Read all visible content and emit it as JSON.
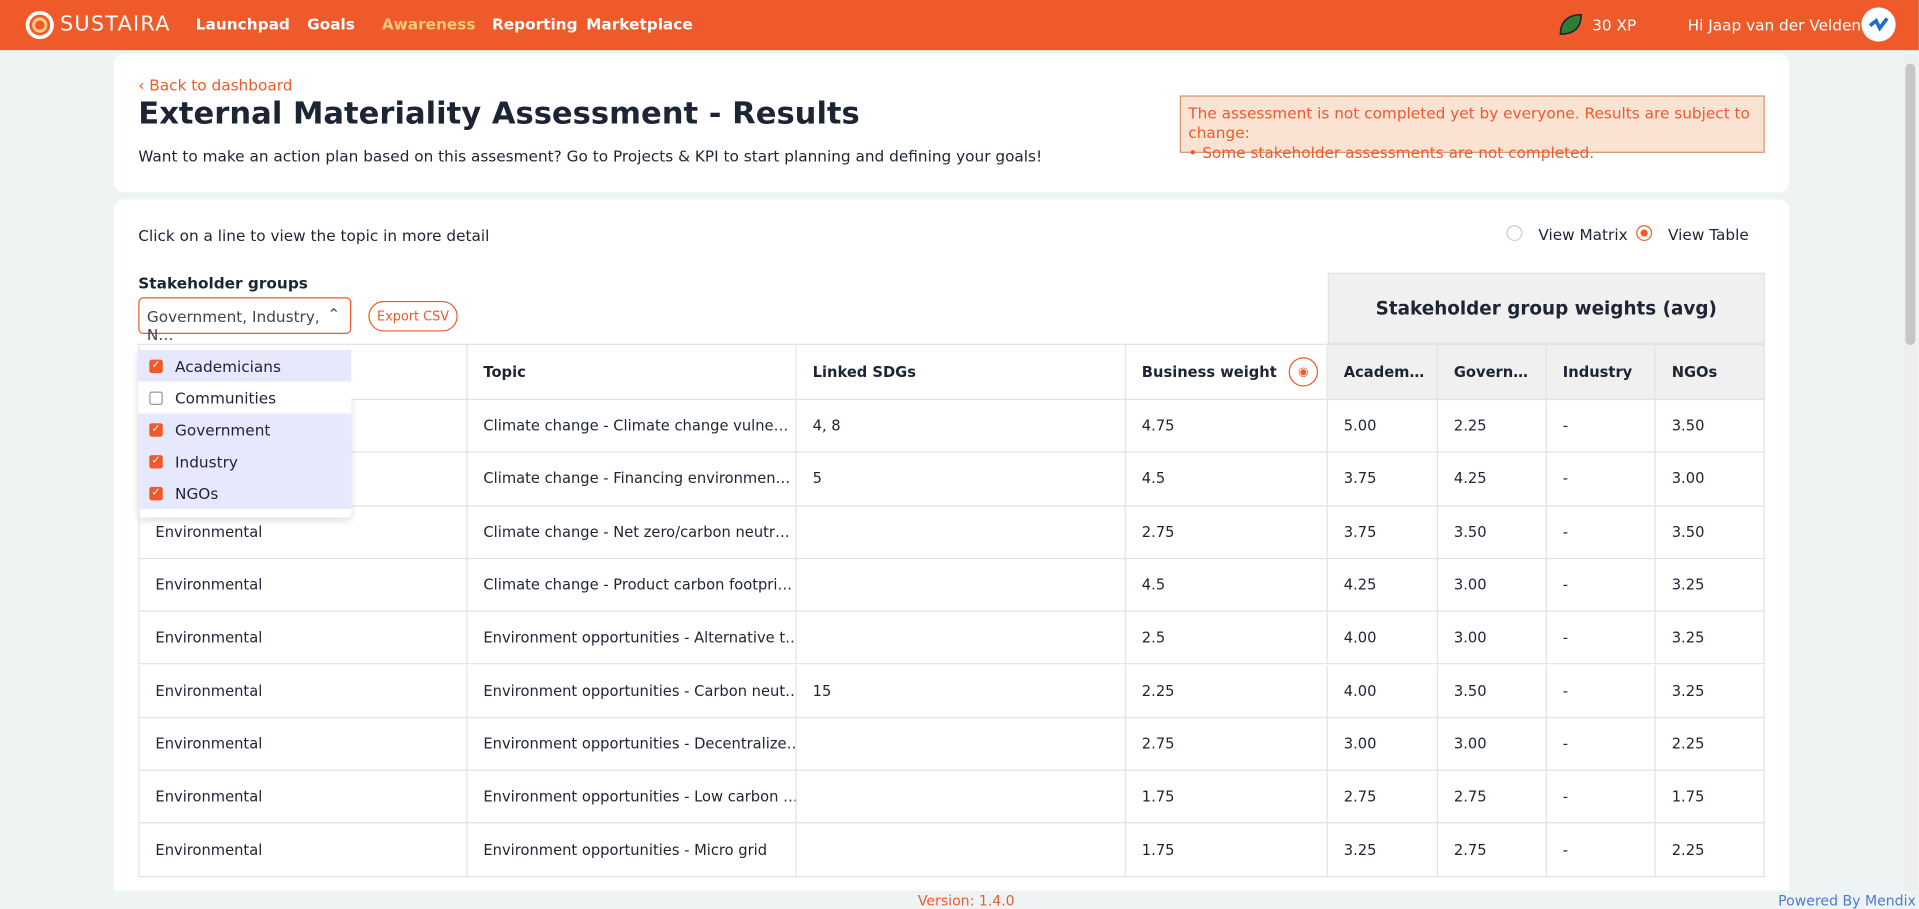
{
  "nav": {
    "brand": "SUSTAIRA",
    "links": [
      "Launchpad",
      "Goals",
      "Awareness",
      "Reporting",
      "Marketplace"
    ],
    "active": 2,
    "xp": "30 XP",
    "greeting": "Hi Jaap van der Velden"
  },
  "header": {
    "back": "Back to dashboard",
    "title": "External Materiality Assessment - Results",
    "subtitle": "Want to make an action plan based on this assesment? Go to Projects & KPI to start planning and defining your goals!",
    "warning": [
      "The assessment is not completed yet by everyone. Results are subject to change:",
      "• Some stakeholder assessments are not completed."
    ]
  },
  "controls": {
    "instruction": "Click on a line to view the topic in more detail",
    "views": [
      {
        "label": "View Matrix",
        "selected": false
      },
      {
        "label": "View Table",
        "selected": true
      }
    ],
    "filter_label": "Stakeholder groups",
    "filter_value": "Government, Industry, N…",
    "export": "Export CSV",
    "options": [
      {
        "label": "Academicians",
        "checked": true
      },
      {
        "label": "Communities",
        "checked": false
      },
      {
        "label": "Government",
        "checked": true
      },
      {
        "label": "Industry",
        "checked": true
      },
      {
        "label": "NGOs",
        "checked": true
      }
    ]
  },
  "table": {
    "group_header": "Stakeholder group weights (avg)",
    "columns": [
      null,
      "Topic",
      "Linked SDGs",
      "Business weight",
      "Academ…",
      "Govern…",
      "Industry",
      "NGOs"
    ],
    "rows": [
      [
        null,
        "Climate change - Climate change vulne…",
        "4, 8",
        "4.75",
        "5.00",
        "2.25",
        "-",
        "3.50"
      ],
      [
        null,
        "Climate change - Financing environmen…",
        "5",
        "4.5",
        "3.75",
        "4.25",
        "-",
        "3.00"
      ],
      [
        "Environmental",
        "Climate change - Net zero/carbon neutr…",
        null,
        "2.75",
        "3.75",
        "3.50",
        "-",
        "3.50"
      ],
      [
        "Environmental",
        "Climate change - Product carbon footpri…",
        null,
        "4.5",
        "4.25",
        "3.00",
        "-",
        "3.25"
      ],
      [
        "Environmental",
        "Environment opportunities - Alternative t…",
        null,
        "2.5",
        "4.00",
        "3.00",
        "-",
        "3.25"
      ],
      [
        "Environmental",
        "Environment opportunities - Carbon neut…",
        "15",
        "2.25",
        "4.00",
        "3.50",
        "-",
        "3.25"
      ],
      [
        "Environmental",
        "Environment opportunities - Decentralize…",
        null,
        "2.75",
        "3.00",
        "3.00",
        "-",
        "2.25"
      ],
      [
        "Environmental",
        "Environment opportunities - Low carbon …",
        null,
        "1.75",
        "2.75",
        "2.75",
        "-",
        "1.75"
      ],
      [
        "Environmental",
        "Environment opportunities - Micro grid",
        null,
        "1.75",
        "3.25",
        "2.75",
        "-",
        "2.25"
      ]
    ]
  },
  "footer": {
    "version": "Version: 1.4.0",
    "powered": "Powered By Mendix"
  }
}
